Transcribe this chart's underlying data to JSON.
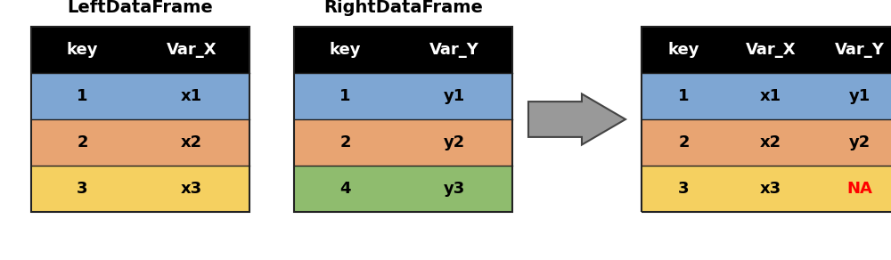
{
  "title_left": "LeftDataFrame",
  "title_right": "RightDataFrame",
  "left_headers": [
    "key",
    "Var_X"
  ],
  "right_headers": [
    "key",
    "Var_Y"
  ],
  "merged_headers": [
    "key",
    "Var_X",
    "Var_Y"
  ],
  "left_rows": [
    [
      "1",
      "x1"
    ],
    [
      "2",
      "x2"
    ],
    [
      "3",
      "x3"
    ]
  ],
  "right_rows": [
    [
      "1",
      "y1"
    ],
    [
      "2",
      "y2"
    ],
    [
      "4",
      "y3"
    ]
  ],
  "merged_rows": [
    [
      "1",
      "x1",
      "y1"
    ],
    [
      "2",
      "x2",
      "y2"
    ],
    [
      "3",
      "x3",
      "NA"
    ]
  ],
  "na_color": "#ff0000",
  "header_bg": "#000000",
  "header_fg": "#ffffff",
  "row_blue": "#7ea6d3",
  "row_orange": "#e8a472",
  "row_yellow": "#f5d060",
  "row_green": "#8fbc6e",
  "title_fontsize": 14,
  "cell_fontsize": 13,
  "title_color": "#000000",
  "background_color": "#ffffff",
  "arrow_fill": "#999999",
  "arrow_edge": "#444444",
  "border_color": "#222222"
}
